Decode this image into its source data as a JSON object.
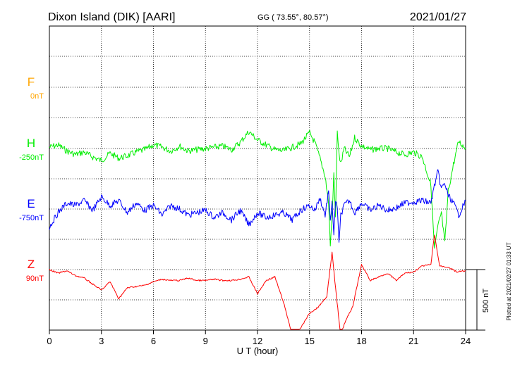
{
  "chart_data": {
    "type": "line",
    "title": "Dixon Island (DIK)  [AARI]",
    "subtitle": "GG ( 73.55°,  80.57°)",
    "date": "2021/01/27",
    "xlabel": "U T (hour)",
    "xlim": [
      0,
      24
    ],
    "xticks": [
      "0",
      "3",
      "6",
      "9",
      "12",
      "15",
      "18",
      "21",
      "24"
    ],
    "scale_label": "500 nT",
    "scale_nT": 500,
    "plotted_note": "Plotted at 2021/02/27 01:33 UT",
    "grid": true,
    "series": [
      {
        "name": "F",
        "baseline_label": "0nT",
        "color": "#ffa500",
        "x": [],
        "y": []
      },
      {
        "name": "H",
        "baseline_label": "-250nT",
        "color": "#00ee00",
        "x": [
          0,
          0.5,
          1,
          1.5,
          2,
          2.5,
          3,
          3.5,
          4,
          4.5,
          5,
          5.5,
          6,
          6.5,
          7,
          7.5,
          8,
          8.5,
          9,
          9.5,
          10,
          10.5,
          11,
          11.5,
          12,
          12.5,
          13,
          13.5,
          14,
          14.5,
          15,
          15.3,
          15.6,
          15.9,
          16.1,
          16.2,
          16.3,
          16.4,
          16.5,
          16.6,
          16.7,
          16.8,
          17,
          17.3,
          17.6,
          18,
          18.5,
          19,
          19.5,
          20,
          20.5,
          21,
          21.5,
          22,
          22.2,
          22.4,
          22.6,
          22.8,
          23,
          23.3,
          23.6,
          24
        ],
        "y": [
          -240,
          -220,
          -270,
          -300,
          -280,
          -320,
          -350,
          -290,
          -330,
          -310,
          -280,
          -260,
          -220,
          -240,
          -270,
          -230,
          -270,
          -260,
          -250,
          -240,
          -230,
          -260,
          -200,
          -110,
          -180,
          -220,
          -260,
          -270,
          -240,
          -210,
          -120,
          -200,
          -330,
          -480,
          -700,
          -1050,
          -800,
          -470,
          -820,
          -90,
          -300,
          -380,
          -250,
          -320,
          -160,
          -230,
          -260,
          -250,
          -250,
          -280,
          -300,
          -280,
          -320,
          -550,
          -1080,
          -900,
          -780,
          -1030,
          -600,
          -380,
          -190,
          -250
        ]
      },
      {
        "name": "E",
        "baseline_label": "-750nT",
        "color": "#0000ff",
        "x": [
          0,
          0.5,
          1,
          1.5,
          2,
          2.5,
          3,
          3.5,
          4,
          4.5,
          5,
          5.5,
          6,
          6.5,
          7,
          7.5,
          8,
          8.5,
          9,
          9.5,
          10,
          10.5,
          11,
          11.5,
          12,
          12.5,
          13,
          13.5,
          14,
          14.5,
          15,
          15.3,
          15.6,
          15.9,
          16.1,
          16.2,
          16.3,
          16.4,
          16.5,
          16.6,
          16.7,
          16.8,
          17,
          17.3,
          17.6,
          18,
          18.5,
          19,
          19.5,
          20,
          20.5,
          21,
          21.5,
          22,
          22.2,
          22.4,
          22.6,
          22.8,
          23,
          23.3,
          23.6,
          24
        ],
        "y": [
          -900,
          -780,
          -700,
          -720,
          -680,
          -760,
          -650,
          -720,
          -680,
          -780,
          -700,
          -760,
          -720,
          -800,
          -720,
          -750,
          -800,
          -780,
          -760,
          -820,
          -780,
          -840,
          -760,
          -880,
          -780,
          -820,
          -800,
          -780,
          -840,
          -760,
          -720,
          -760,
          -660,
          -800,
          -600,
          -860,
          -680,
          -960,
          -700,
          -720,
          -1050,
          -800,
          -720,
          -680,
          -780,
          -700,
          -760,
          -720,
          -760,
          -740,
          -700,
          -690,
          -680,
          -700,
          -560,
          -440,
          -580,
          -540,
          -640,
          -700,
          -800,
          -680
        ]
      },
      {
        "name": "Z",
        "baseline_label": "90nT",
        "color": "#ff0000",
        "x": [
          0,
          0.5,
          1,
          1.5,
          2,
          2.5,
          3,
          3.5,
          4,
          4.5,
          5,
          5.5,
          6,
          6.5,
          7,
          7.5,
          8,
          8.5,
          9,
          9.5,
          10,
          10.5,
          11,
          11.5,
          12,
          12.5,
          13,
          13.5,
          14,
          14.5,
          15,
          15.5,
          16,
          16.3,
          16.5,
          16.8,
          17,
          17.5,
          18,
          18.5,
          19,
          19.5,
          20,
          20.5,
          21,
          21.5,
          22,
          22.2,
          22.5,
          23,
          23.5,
          24
        ],
        "y": [
          90,
          60,
          80,
          40,
          20,
          -30,
          -80,
          -10,
          -150,
          -60,
          -50,
          -40,
          -10,
          10,
          0,
          0,
          20,
          0,
          0,
          10,
          0,
          0,
          10,
          30,
          -110,
          0,
          30,
          -180,
          -450,
          -390,
          -270,
          -220,
          -130,
          230,
          -60,
          -460,
          -360,
          -210,
          130,
          0,
          30,
          60,
          0,
          60,
          70,
          120,
          130,
          380,
          120,
          110,
          70,
          80
        ]
      }
    ]
  }
}
